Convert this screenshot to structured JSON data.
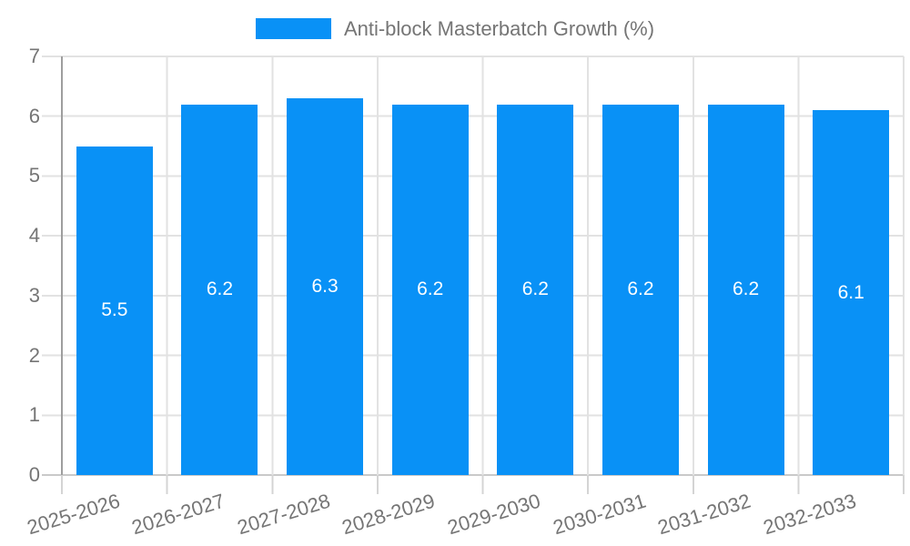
{
  "chart_data": {
    "type": "bar",
    "title": "Anti-block Masterbatch Growth (%)",
    "legend": {
      "position": "top-center",
      "label": "Anti-block Masterbatch Growth (%)"
    },
    "categories": [
      "2025-2026",
      "2026-2027",
      "2027-2028",
      "2028-2029",
      "2029-2030",
      "2030-2031",
      "2031-2032",
      "2032-2033"
    ],
    "values": [
      5.5,
      6.2,
      6.3,
      6.2,
      6.2,
      6.2,
      6.2,
      6.1
    ],
    "value_labels": [
      "5.5",
      "6.2",
      "6.3",
      "6.2",
      "6.2",
      "6.2",
      "6.2",
      "6.1"
    ],
    "xlabel": "",
    "ylabel": "",
    "ylim": [
      0,
      7
    ],
    "yticks": [
      0,
      1,
      2,
      3,
      4,
      5,
      6,
      7
    ],
    "ytick_labels": [
      "0",
      "1",
      "2",
      "3",
      "4",
      "5",
      "6",
      "7"
    ],
    "grid": true,
    "x_labels_rotated_deg": -17,
    "colors": {
      "bar": "#0991F6",
      "axis_text": "#757575",
      "gridline": "#E2E2E2",
      "baseline": "#C9C9C9",
      "axis_line": "#9E9E9E",
      "tick": "#D4D4D4",
      "value_label": "#FFFFFF",
      "background": "#FFFFFF"
    }
  }
}
